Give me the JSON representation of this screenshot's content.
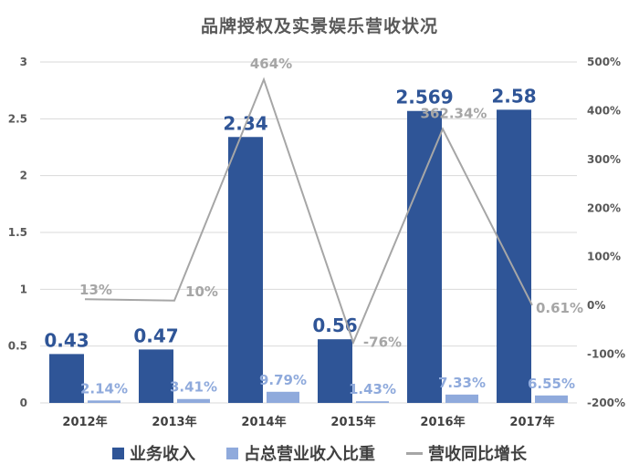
{
  "chart_data": {
    "type": "bar",
    "title": "品牌授权及实景娱乐营收状况",
    "categories": [
      "2012年",
      "2013年",
      "2014年",
      "2015年",
      "2016年",
      "2017年"
    ],
    "series": [
      {
        "name": "业务收入",
        "kind": "bar",
        "axis": "left",
        "color": "#2F5597",
        "values": [
          0.43,
          0.47,
          2.34,
          0.56,
          2.569,
          2.58
        ],
        "labels": [
          "0.43",
          "0.47",
          "2.34",
          "0.56",
          "2.569",
          "2.58"
        ]
      },
      {
        "name": "占总营业收入比重",
        "kind": "bar",
        "axis": "left",
        "color": "#8FAADC",
        "values": [
          0.0214,
          0.0341,
          0.0979,
          0.0143,
          0.0733,
          0.0655
        ],
        "labels": [
          "2.14%",
          "3.41%",
          "9.79%",
          "1.43%",
          "7.33%",
          "6.55%"
        ]
      },
      {
        "name": "营收同比增长",
        "kind": "line",
        "axis": "right",
        "color": "#A6A6A6",
        "values": [
          13,
          10,
          464,
          -76,
          362.34,
          0.61
        ],
        "labels": [
          "13%",
          "10%",
          "464%",
          "-76%",
          "362.34%",
          "0.61%"
        ]
      }
    ],
    "y_left": {
      "min": 0,
      "max": 3,
      "ticks": [
        "0",
        "0.5",
        "1",
        "1.5",
        "2",
        "2.5",
        "3"
      ]
    },
    "y_right": {
      "min": -200,
      "max": 500,
      "ticks": [
        "-200%",
        "-100%",
        "0%",
        "100%",
        "200%",
        "300%",
        "400%",
        "500%"
      ]
    },
    "grid": true,
    "legend_position": "bottom"
  }
}
